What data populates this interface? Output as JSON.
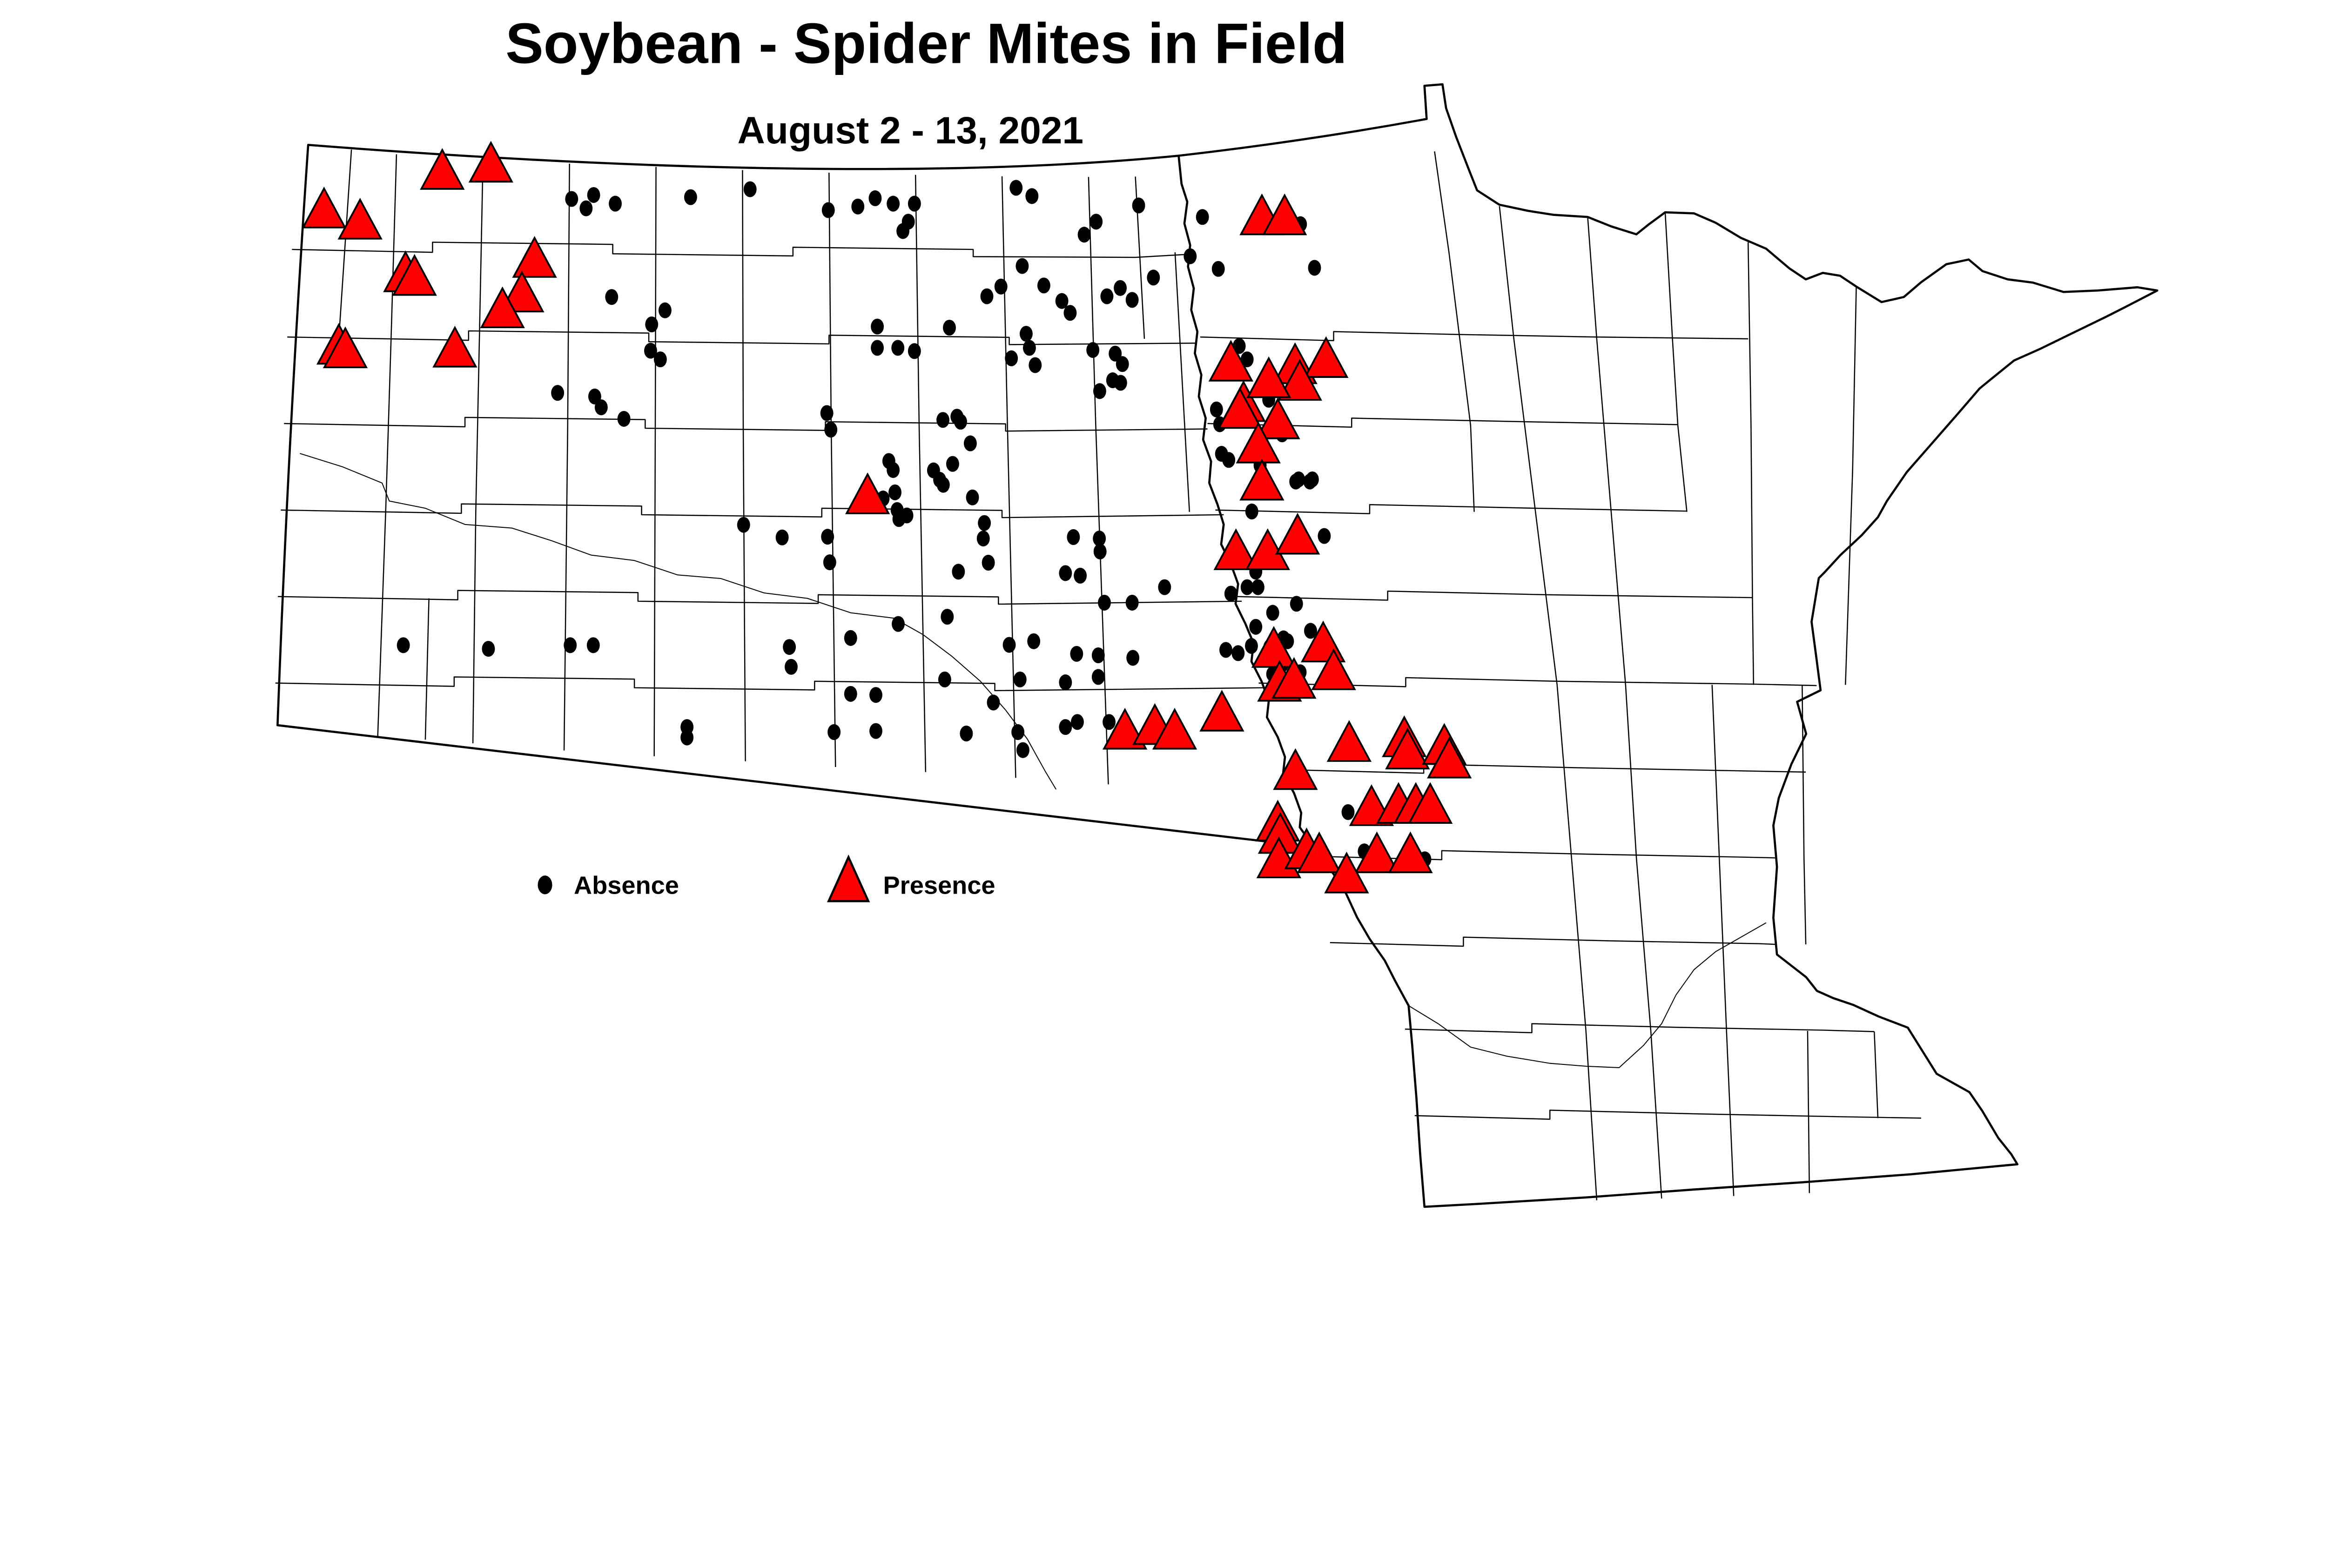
{
  "header": {
    "title": "Soybean - Spider Mites in Field",
    "subtitle": "August 2 - 13, 2021"
  },
  "legend": {
    "absence_label": "Absence",
    "presence_label": "Presence",
    "absence_icon": "black-dot-icon",
    "presence_icon": "red-triangle-icon"
  },
  "colors": {
    "background": "#FFFFFF",
    "absence_fill": "#000000",
    "presence_fill": "#FF0000",
    "marker_stroke": "#000000",
    "boundary_line": "#000000"
  },
  "chart_data": {
    "type": "scatter",
    "title": "Soybean - Spider Mites in Field",
    "subtitle": "August 2 - 13, 2021",
    "region": "North Dakota and Minnesota county map",
    "legend_position": "bottom-left",
    "series": [
      {
        "name": "Absence",
        "marker": "black-dot",
        "points": [
          [
            1586,
            552
          ],
          [
            1647,
            541
          ],
          [
            1626,
            578
          ],
          [
            1707,
            565
          ],
          [
            1451,
            821
          ],
          [
            1697,
            824
          ],
          [
            1808,
            900
          ],
          [
            1845,
            861
          ],
          [
            1805,
            973
          ],
          [
            1832,
            997
          ],
          [
            1547,
            1090
          ],
          [
            1650,
            1100
          ],
          [
            1668,
            1130
          ],
          [
            1731,
            1162
          ],
          [
            1916,
            547
          ],
          [
            2081,
            525
          ],
          [
            2298,
            583
          ],
          [
            2380,
            573
          ],
          [
            2428,
            550
          ],
          [
            2478,
            565
          ],
          [
            2537,
            565
          ],
          [
            2520,
            615
          ],
          [
            2505,
            641
          ],
          [
            2819,
            521
          ],
          [
            2863,
            544
          ],
          [
            3159,
            570
          ],
          [
            3041,
            615
          ],
          [
            3008,
            651
          ],
          [
            2836,
            738
          ],
          [
            2777,
            795
          ],
          [
            2738,
            822
          ],
          [
            2896,
            792
          ],
          [
            2946,
            835
          ],
          [
            2969,
            868
          ],
          [
            3071,
            822
          ],
          [
            3108,
            799
          ],
          [
            3141,
            832
          ],
          [
            3200,
            770
          ],
          [
            2434,
            906
          ],
          [
            2634,
            909
          ],
          [
            2434,
            965
          ],
          [
            2491,
            965
          ],
          [
            2537,
            974
          ],
          [
            2847,
            926
          ],
          [
            2856,
            965
          ],
          [
            2806,
            994
          ],
          [
            2872,
            1013
          ],
          [
            3032,
            971
          ],
          [
            3094,
            981
          ],
          [
            3114,
            1010
          ],
          [
            3087,
            1055
          ],
          [
            3051,
            1085
          ],
          [
            3109,
            1062
          ],
          [
            2294,
            1146
          ],
          [
            2305,
            1192
          ],
          [
            2616,
            1165
          ],
          [
            2655,
            1156
          ],
          [
            2665,
            1170
          ],
          [
            2692,
            1230
          ],
          [
            2466,
            1279
          ],
          [
            2478,
            1304
          ],
          [
            2590,
            1305
          ],
          [
            2643,
            1287
          ],
          [
            2607,
            1331
          ],
          [
            2617,
            1345
          ],
          [
            2483,
            1366
          ],
          [
            2489,
            1415
          ],
          [
            2516,
            1430
          ],
          [
            2494,
            1440
          ],
          [
            2698,
            1380
          ],
          [
            2731,
            1451
          ],
          [
            2728,
            1494
          ],
          [
            2742,
            1561
          ],
          [
            2659,
            1586
          ],
          [
            2063,
            1456
          ],
          [
            2170,
            1491
          ],
          [
            2296,
            1489
          ],
          [
            2302,
            1560
          ],
          [
            2418,
            1391
          ],
          [
            2450,
            1383
          ],
          [
            3473,
            1419
          ],
          [
            3603,
            1330
          ],
          [
            3641,
            1330
          ],
          [
            3674,
            1487
          ],
          [
            2978,
            1490
          ],
          [
            3050,
            1494
          ],
          [
            3052,
            1530
          ],
          [
            2956,
            1590
          ],
          [
            2997,
            1597
          ],
          [
            3231,
            1629
          ],
          [
            3064,
            1672
          ],
          [
            3141,
            1672
          ],
          [
            3415,
            1647
          ],
          [
            3484,
            1586
          ],
          [
            3460,
            1629
          ],
          [
            3490,
            1629
          ],
          [
            3438,
            960
          ],
          [
            3460,
            997
          ],
          [
            3520,
            1109
          ],
          [
            3375,
            1136
          ],
          [
            3384,
            1177
          ],
          [
            3557,
            1205
          ],
          [
            3389,
            1259
          ],
          [
            3409,
            1276
          ],
          [
            3496,
            1291
          ],
          [
            3595,
            1336
          ],
          [
            3634,
            1336
          ],
          [
            3336,
            602
          ],
          [
            3302,
            711
          ],
          [
            3380,
            746
          ],
          [
            3608,
            622
          ],
          [
            3647,
            743
          ],
          [
            2628,
            1711
          ],
          [
            2492,
            1731
          ],
          [
            2800,
            1789
          ],
          [
            2868,
            1779
          ],
          [
            2987,
            1814
          ],
          [
            3047,
            1818
          ],
          [
            3143,
            1825
          ],
          [
            3047,
            1878
          ],
          [
            2621,
            1885
          ],
          [
            2830,
            1885
          ],
          [
            2956,
            1893
          ],
          [
            2756,
            1949
          ],
          [
            2989,
            2003
          ],
          [
            3077,
            2003
          ],
          [
            2956,
            2017
          ],
          [
            2824,
            2031
          ],
          [
            2681,
            2035
          ],
          [
            2838,
            2081
          ],
          [
            1119,
            1790
          ],
          [
            1355,
            1800
          ],
          [
            1582,
            1790
          ],
          [
            1646,
            1790
          ],
          [
            2190,
            1795
          ],
          [
            2195,
            1850
          ],
          [
            2360,
            1770
          ],
          [
            2360,
            1925
          ],
          [
            2430,
            1928
          ],
          [
            2314,
            2031
          ],
          [
            2430,
            2028
          ],
          [
            1906,
            2017
          ],
          [
            1906,
            2046
          ],
          [
            3401,
            1803
          ],
          [
            3435,
            1812
          ],
          [
            3472,
            1792
          ],
          [
            3523,
            1795
          ],
          [
            3561,
            1771
          ],
          [
            3557,
            1844
          ],
          [
            3531,
            1870
          ],
          [
            3607,
            1865
          ],
          [
            3550,
            1877
          ],
          [
            3531,
            1700
          ],
          [
            3597,
            1675
          ],
          [
            3636,
            1750
          ],
          [
            3572,
            1779
          ],
          [
            3484,
            1739
          ],
          [
            3740,
            2253
          ],
          [
            3785,
            2362
          ],
          [
            3800,
            2372
          ],
          [
            3953,
            2384
          ]
        ]
      },
      {
        "name": "Presence",
        "marker": "red-triangle",
        "points": [
          [
            1227,
            478
          ],
          [
            1362,
            458
          ],
          [
            899,
            585
          ],
          [
            999,
            616
          ],
          [
            1125,
            762
          ],
          [
            1150,
            772
          ],
          [
            1483,
            722
          ],
          [
            1448,
            818
          ],
          [
            1394,
            862
          ],
          [
            940,
            963
          ],
          [
            958,
            973
          ],
          [
            1262,
            971
          ],
          [
            2407,
            1378
          ],
          [
            3501,
            604
          ],
          [
            3564,
            604
          ],
          [
            3415,
            1010
          ],
          [
            3450,
            1122
          ],
          [
            3593,
            1017
          ],
          [
            3679,
            1000
          ],
          [
            3606,
            1063
          ],
          [
            3520,
            1056
          ],
          [
            3440,
            1141
          ],
          [
            3545,
            1170
          ],
          [
            3491,
            1237
          ],
          [
            3501,
            1340
          ],
          [
            3429,
            1533
          ],
          [
            3517,
            1533
          ],
          [
            3600,
            1490
          ],
          [
            3534,
            1804
          ],
          [
            3550,
            1898
          ],
          [
            3590,
            1890
          ],
          [
            3671,
            1789
          ],
          [
            3700,
            1866
          ],
          [
            3390,
            1981
          ],
          [
            3121,
            2031
          ],
          [
            3204,
            2018
          ],
          [
            3259,
            2031
          ],
          [
            3594,
            2143
          ],
          [
            3743,
            2065
          ],
          [
            3896,
            2052
          ],
          [
            3905,
            2086
          ],
          [
            4007,
            2073
          ],
          [
            4021,
            2111
          ],
          [
            3805,
            2243
          ],
          [
            3880,
            2237
          ],
          [
            3928,
            2237
          ],
          [
            3968,
            2237
          ],
          [
            3545,
            2286
          ],
          [
            3552,
            2320
          ],
          [
            3548,
            2388
          ],
          [
            3625,
            2363
          ],
          [
            3660,
            2374
          ],
          [
            3820,
            2374
          ],
          [
            3913,
            2374
          ],
          [
            3736,
            2430
          ]
        ]
      }
    ]
  }
}
